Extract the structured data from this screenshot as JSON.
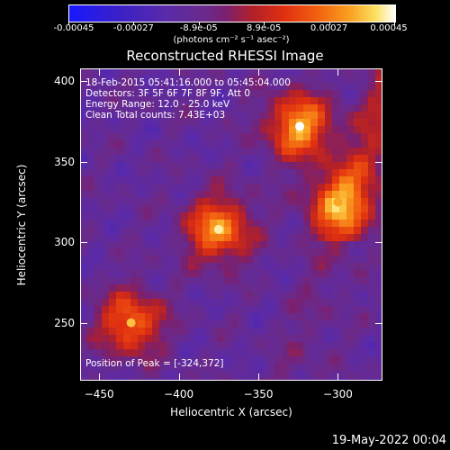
{
  "colorbar": {
    "ticks": [
      "-0.00045",
      "-0.00027",
      "-8.9e-05",
      "8.9e-05",
      "0.00027",
      "0.00045"
    ],
    "tick_fracs": [
      0.0,
      0.2,
      0.4,
      0.6,
      0.8,
      1.0
    ],
    "units": "(photons cm⁻² s⁻¹ asec⁻²)"
  },
  "chart_data": {
    "type": "heatmap",
    "title": "Reconstructed RHESSI Image",
    "xlabel": "Heliocentric X (arcsec)",
    "ylabel": "Heliocentric Y (arcsec)",
    "xlim": [
      -462,
      -272
    ],
    "ylim": [
      214,
      408
    ],
    "x_ticks": [
      -450,
      -400,
      -350,
      -300
    ],
    "y_ticks": [
      250,
      300,
      350,
      400
    ],
    "x_tick_labels": [
      "−450",
      "−400",
      "−350",
      "−300"
    ],
    "y_tick_labels": [
      "250",
      "300",
      "350",
      "400"
    ],
    "value_range": [
      -0.00045,
      0.00045
    ],
    "peak_position": [
      -324,
      372
    ],
    "bright_sources": [
      {
        "x": -375,
        "y": 308,
        "value": 0.00042
      },
      {
        "x": -324,
        "y": 372,
        "value": 0.00045
      },
      {
        "x": -300,
        "y": 325,
        "value": 0.00033
      },
      {
        "x": -430,
        "y": 250,
        "value": 0.00036
      }
    ],
    "annotations": [
      "18-Feb-2015 05:41:16.000 to 05:45:04.000",
      "Detectors: 3F 5F 6F 7F 8F 9F, Att 0",
      "Energy Range: 12.0 - 25.0 keV",
      "Clean     Total counts: 7.43E+03",
      "Position of Peak = [-324,372]"
    ]
  },
  "datestamp": "19-May-2022 00:04"
}
